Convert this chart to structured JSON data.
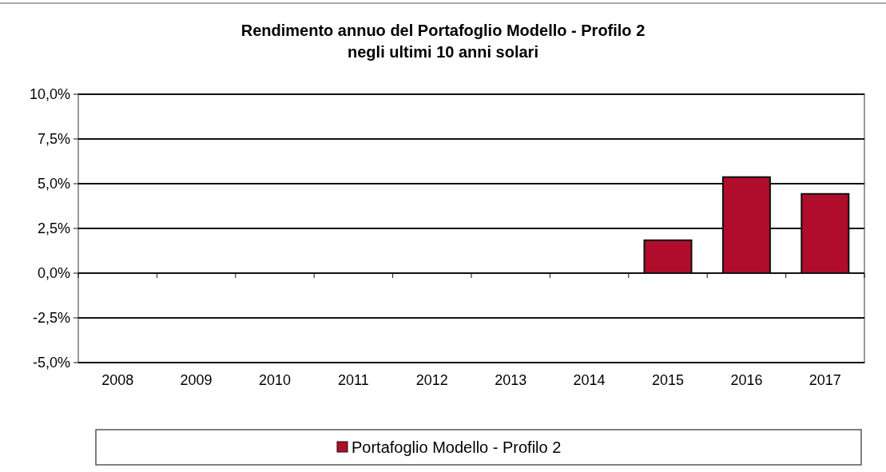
{
  "chart_data": {
    "type": "bar",
    "title": "Rendimento annuo del Portafoglio Modello - Profilo 2\nnegli ultimi 10 anni solari",
    "categories": [
      "2008",
      "2009",
      "2010",
      "2011",
      "2012",
      "2013",
      "2014",
      "2015",
      "2016",
      "2017"
    ],
    "series": [
      {
        "name": "Portafoglio Modello - Profilo 2",
        "color": "#b00c2c",
        "values": [
          null,
          null,
          null,
          null,
          null,
          null,
          null,
          1.84,
          5.37,
          4.43
        ]
      }
    ],
    "ylim": [
      -5,
      10
    ],
    "yticks": [
      {
        "value": -5,
        "label": "-5,0%"
      },
      {
        "value": -2.5,
        "label": "-2,5%"
      },
      {
        "value": 0,
        "label": "0,0%"
      },
      {
        "value": 2.5,
        "label": "2,5%"
      },
      {
        "value": 5,
        "label": "5,0%"
      },
      {
        "value": 7.5,
        "label": "7,5%"
      },
      {
        "value": 10,
        "label": "10,0%"
      }
    ],
    "grid": "y",
    "legend": "bottom"
  }
}
